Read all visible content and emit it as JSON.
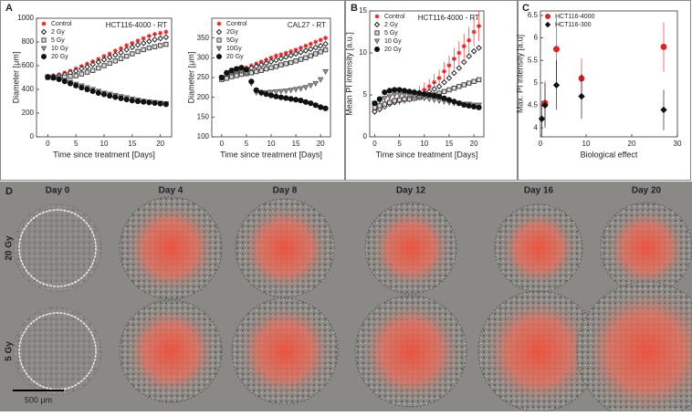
{
  "panel_labels": [
    "A",
    "B",
    "C"
  ],
  "chart_data": [
    {
      "type": "scatter",
      "title": "HCT116-4000 - RT",
      "x_label": "Time since treatment [Days]",
      "y_label": "Diameter [μm]",
      "x": [
        0,
        1,
        2,
        3,
        4,
        5,
        6,
        7,
        8,
        9,
        10,
        11,
        12,
        13,
        14,
        15,
        16,
        17,
        18,
        19,
        20,
        21
      ],
      "xlim": [
        -2,
        22
      ],
      "xticks": [
        0,
        5,
        10,
        15,
        20
      ],
      "ylim": [
        0,
        1000
      ],
      "yticks": [
        0,
        200,
        400,
        600,
        800,
        1000
      ],
      "legend": "upper left",
      "series": [
        {
          "name": "Control",
          "color": "#d62728",
          "marker": "asterisk",
          "values": [
            510,
            515,
            525,
            540,
            555,
            575,
            595,
            615,
            635,
            655,
            680,
            700,
            725,
            745,
            770,
            790,
            810,
            830,
            850,
            865,
            875,
            885
          ]
        },
        {
          "name": "2 Gy",
          "color": "#222222",
          "marker": "diamond",
          "values": [
            505,
            510,
            515,
            525,
            540,
            555,
            575,
            590,
            610,
            630,
            650,
            670,
            690,
            710,
            735,
            755,
            775,
            790,
            805,
            820,
            830,
            840
          ]
        },
        {
          "name": "5 Gy",
          "color": "#444444",
          "marker": "square",
          "values": [
            500,
            500,
            500,
            505,
            510,
            515,
            530,
            545,
            560,
            580,
            600,
            620,
            640,
            660,
            680,
            700,
            720,
            735,
            750,
            760,
            770,
            780
          ]
        },
        {
          "name": "10 Gy",
          "color": "#666666",
          "marker": "triangle",
          "values": [
            505,
            500,
            490,
            475,
            460,
            445,
            430,
            415,
            400,
            385,
            370,
            360,
            350,
            340,
            330,
            320,
            310,
            300,
            295,
            290,
            285,
            280
          ]
        },
        {
          "name": "20 Gy",
          "color": "#111111",
          "marker": "circle",
          "values": [
            505,
            498,
            485,
            468,
            450,
            432,
            415,
            400,
            385,
            370,
            358,
            346,
            335,
            325,
            315,
            306,
            300,
            295,
            290,
            285,
            280,
            275
          ]
        }
      ]
    },
    {
      "type": "scatter",
      "title": "CAL27 - RT",
      "x_label": "Time since treatment [Days]",
      "y_label": "Diameter [μm]",
      "x": [
        0,
        1,
        2,
        3,
        4,
        5,
        6,
        7,
        8,
        9,
        10,
        11,
        12,
        13,
        14,
        15,
        16,
        17,
        18,
        19,
        20,
        21
      ],
      "xlim": [
        -2,
        22
      ],
      "xticks": [
        0,
        5,
        10,
        15,
        20
      ],
      "ylim": [
        100,
        400
      ],
      "yticks": [
        100,
        150,
        200,
        250,
        300,
        350
      ],
      "legend": "upper left",
      "series": [
        {
          "name": "Control",
          "color": "#d62728",
          "marker": "asterisk",
          "values": [
            250,
            255,
            262,
            268,
            272,
            275,
            280,
            285,
            290,
            295,
            300,
            305,
            308,
            312,
            316,
            320,
            325,
            330,
            335,
            340,
            345,
            350
          ]
        },
        {
          "name": "2Gy",
          "color": "#222222",
          "marker": "diamond",
          "values": [
            248,
            252,
            258,
            262,
            266,
            270,
            274,
            278,
            282,
            286,
            290,
            294,
            298,
            302,
            306,
            310,
            314,
            318,
            322,
            326,
            330,
            335
          ]
        },
        {
          "name": "5Gy",
          "color": "#444444",
          "marker": "square",
          "values": [
            245,
            248,
            252,
            255,
            258,
            260,
            262,
            265,
            268,
            272,
            275,
            278,
            282,
            285,
            288,
            292,
            296,
            300,
            305,
            310,
            315,
            320
          ]
        },
        {
          "name": "10Gy",
          "color": "#666666",
          "marker": "triangle",
          "values": [
            250,
            258,
            262,
            265,
            266,
            260,
            235,
            212,
            210,
            212,
            213,
            214,
            215,
            216,
            218,
            220,
            222,
            225,
            230,
            235,
            245,
            265
          ]
        },
        {
          "name": "20 Gy",
          "color": "#111111",
          "marker": "circle",
          "values": [
            250,
            262,
            268,
            272,
            275,
            270,
            240,
            218,
            212,
            208,
            205,
            202,
            200,
            198,
            196,
            194,
            192,
            188,
            185,
            180,
            175,
            172
          ]
        }
      ]
    },
    {
      "type": "scatter",
      "title": "HCT116-4000 - RT",
      "x_label": "Time since treatment [Days]",
      "y_label": "Mean PI intensity [a.u.]",
      "x": [
        0,
        1,
        2,
        3,
        4,
        5,
        6,
        7,
        8,
        9,
        10,
        11,
        12,
        13,
        14,
        15,
        16,
        17,
        18,
        19,
        20,
        21
      ],
      "xlim": [
        -1,
        22
      ],
      "xticks": [
        0,
        5,
        10,
        15,
        20
      ],
      "ylim": [
        0,
        15
      ],
      "yticks": [
        0,
        5,
        10,
        15
      ],
      "legend": "upper left",
      "series": [
        {
          "name": "Control",
          "color": "#d62728",
          "marker": "asterisk",
          "values": [
            3.2,
            3.5,
            4,
            4.2,
            4.4,
            4.5,
            4.6,
            4.8,
            5,
            5.3,
            5.6,
            6,
            6.5,
            7,
            7.8,
            8.5,
            9.3,
            10,
            10.8,
            11.5,
            12.5,
            13.2
          ],
          "errors": [
            0.6,
            0.6,
            0.6,
            0.6,
            0.6,
            0.7,
            0.7,
            0.7,
            0.8,
            0.8,
            0.9,
            0.9,
            1,
            1,
            1.1,
            1.2,
            1.3,
            1.4,
            1.5,
            1.6,
            1.7,
            1.8
          ]
        },
        {
          "name": "2 Gy",
          "color": "#222222",
          "marker": "diamond",
          "values": [
            3,
            3.3,
            3.6,
            3.9,
            4.1,
            4.3,
            4.4,
            4.5,
            4.7,
            4.9,
            5.1,
            5.4,
            5.7,
            6,
            6.5,
            7,
            7.6,
            8.2,
            8.9,
            9.6,
            10.2,
            10.6
          ]
        },
        {
          "name": "5 Gy",
          "color": "#444444",
          "marker": "square",
          "values": [
            3.5,
            3.7,
            3.9,
            4.1,
            4.3,
            4.4,
            4.5,
            4.5,
            4.6,
            4.7,
            4.8,
            4.9,
            5,
            5.2,
            5.4,
            5.6,
            5.8,
            6,
            6.2,
            6.4,
            6.6,
            6.8
          ]
        },
        {
          "name": "10 Gy",
          "color": "#666666",
          "marker": "triangle",
          "values": [
            4,
            4.3,
            4.6,
            4.8,
            5,
            5,
            5,
            4.9,
            4.8,
            4.7,
            4.6,
            4.5,
            4.4,
            4.3,
            4.2,
            4.1,
            4,
            4,
            3.9,
            3.9,
            3.8,
            3.8
          ]
        },
        {
          "name": "20 Gy",
          "color": "#111111",
          "marker": "circle",
          "values": [
            4,
            4.5,
            5.3,
            5.5,
            5.6,
            5.6,
            5.5,
            5.4,
            5.3,
            5.2,
            5.1,
            5,
            4.9,
            4.8,
            4.6,
            4.4,
            4.2,
            4,
            3.8,
            3.7,
            3.6,
            3.5
          ]
        }
      ]
    },
    {
      "type": "scatter",
      "x_label": "Biological effect",
      "y_label": "Max. PI intensity [a.u]",
      "xlim": [
        0,
        30
      ],
      "xticks": [
        0,
        10,
        20,
        30
      ],
      "ylim": [
        3.8,
        6.6
      ],
      "yticks": [
        4,
        4.5,
        5,
        5.5,
        6,
        6.5
      ],
      "legend": "upper left",
      "series": [
        {
          "name": "HCT116-4000",
          "color": "#d62728",
          "marker": "circle",
          "x": [
            1,
            3.5,
            9,
            27
          ],
          "values": [
            4.55,
            5.75,
            5.1,
            5.8
          ],
          "errors": [
            0.5,
            0.7,
            0.45,
            0.55
          ]
        },
        {
          "name": "HCT116-300",
          "color": "#111111",
          "marker": "diamondfilled",
          "x": [
            0.3,
            1,
            3.5,
            9,
            27
          ],
          "values": [
            4.2,
            4.5,
            4.95,
            4.7,
            4.4
          ],
          "errors": [
            0.4,
            0.5,
            0.55,
            0.5,
            0.45
          ]
        }
      ]
    }
  ],
  "micrographs": {
    "label": "D",
    "days": [
      "Day 0",
      "Day 4",
      "Day 8",
      "Day 12",
      "Day 16",
      "Day 20"
    ],
    "rows": [
      "20 Gy",
      "5 Gy"
    ],
    "scale_bar": "500 μm"
  }
}
